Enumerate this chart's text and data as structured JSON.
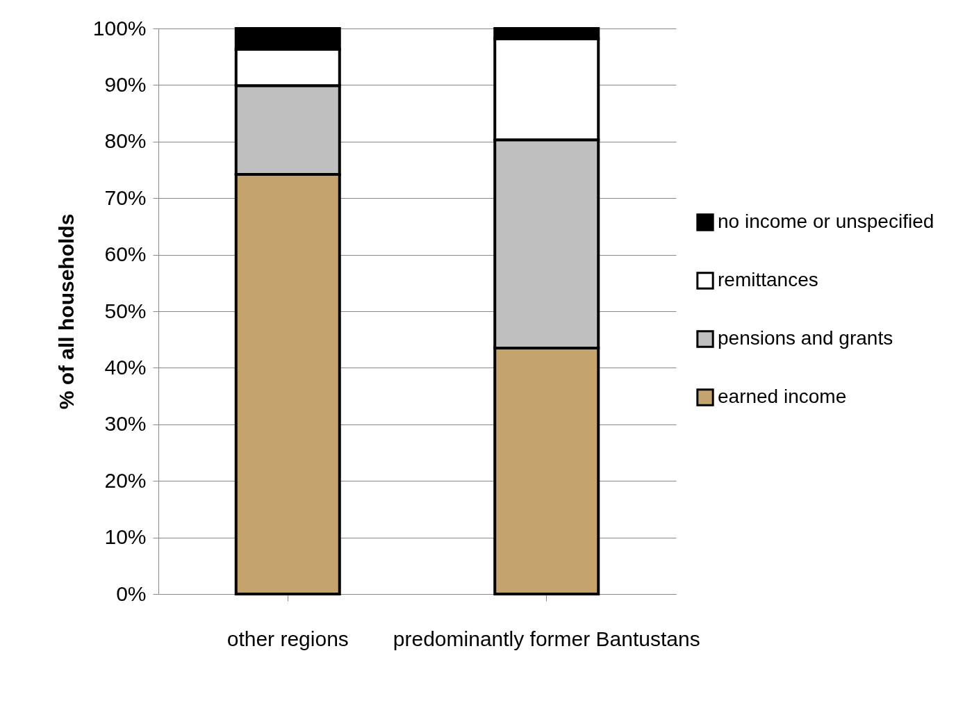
{
  "chart_data": {
    "type": "bar",
    "stacked": true,
    "ylabel": "% of all households",
    "categories": [
      "other regions",
      "predominantly former Bantustans"
    ],
    "series": [
      {
        "name": "earned income",
        "color": "#c4a46c",
        "values": [
          74.2,
          43.5
        ]
      },
      {
        "name": "pensions and grants",
        "color": "#bfbfbf",
        "values": [
          15.7,
          36.8
        ]
      },
      {
        "name": "remittances",
        "color": "#ffffff",
        "values": [
          6.4,
          17.9
        ]
      },
      {
        "name": "no income or unspecified",
        "color": "#000000",
        "values": [
          3.7,
          1.8
        ]
      }
    ],
    "ylim": [
      0,
      100
    ],
    "yticks": [
      {
        "value": 0,
        "label": "0%"
      },
      {
        "value": 10,
        "label": "10%"
      },
      {
        "value": 20,
        "label": "20%"
      },
      {
        "value": 30,
        "label": "30%"
      },
      {
        "value": 40,
        "label": "40%"
      },
      {
        "value": 50,
        "label": "50%"
      },
      {
        "value": 60,
        "label": "60%"
      },
      {
        "value": 70,
        "label": "70%"
      },
      {
        "value": 80,
        "label": "80%"
      },
      {
        "value": 90,
        "label": "90%"
      },
      {
        "value": 100,
        "label": "100%"
      }
    ],
    "grid": "y",
    "legend": "right"
  }
}
